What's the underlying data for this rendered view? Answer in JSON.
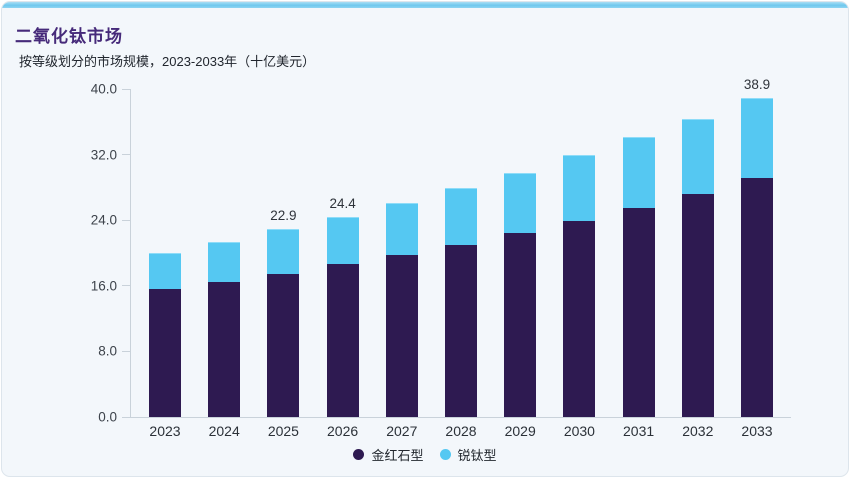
{
  "card": {
    "title": "二氧化钛市场",
    "subtitle": "按等级划分的市场规模，2023-2033年（十亿美元）"
  },
  "chart_data": {
    "type": "bar",
    "stacked": true,
    "title": "二氧化钛市场",
    "subtitle": "按等级划分的市场规模，2023-2033年（十亿美元）",
    "xlabel": "",
    "ylabel": "",
    "ylim": [
      0,
      40
    ],
    "grid": false,
    "legend_position": "bottom-center",
    "categories": [
      "2023",
      "2024",
      "2025",
      "2026",
      "2027",
      "2028",
      "2029",
      "2030",
      "2031",
      "2032",
      "2033"
    ],
    "series": [
      {
        "name": "金红石型",
        "color": "#2e1a51",
        "values": [
          15.6,
          16.5,
          17.5,
          18.6,
          19.8,
          21.0,
          22.4,
          23.9,
          25.5,
          27.2,
          29.1
        ]
      },
      {
        "name": "锐钛型",
        "color": "#55c8f2",
        "values": [
          4.4,
          4.9,
          5.4,
          5.8,
          6.3,
          6.9,
          7.4,
          8.0,
          8.6,
          9.2,
          9.8
        ]
      }
    ],
    "totals": [
      20.0,
      21.4,
      22.9,
      24.4,
      26.1,
      27.9,
      29.8,
      31.9,
      34.1,
      36.4,
      38.9
    ],
    "annotations": [
      {
        "category": "2025",
        "text": "22.9"
      },
      {
        "category": "2026",
        "text": "24.4"
      },
      {
        "category": "2033",
        "text": "38.9"
      }
    ],
    "ytick_labels": [
      "0.0",
      "8.0",
      "16.0",
      "24.0",
      "32.0",
      "40.0"
    ],
    "ytick_step": 8
  },
  "colors": {
    "card_background": "#f3f7fb",
    "accent_top_bar": "#6fc8ee",
    "axis": "#c9d2da",
    "title": "#462a7a",
    "rutile": "#2e1a51",
    "anatase": "#55c8f2"
  }
}
